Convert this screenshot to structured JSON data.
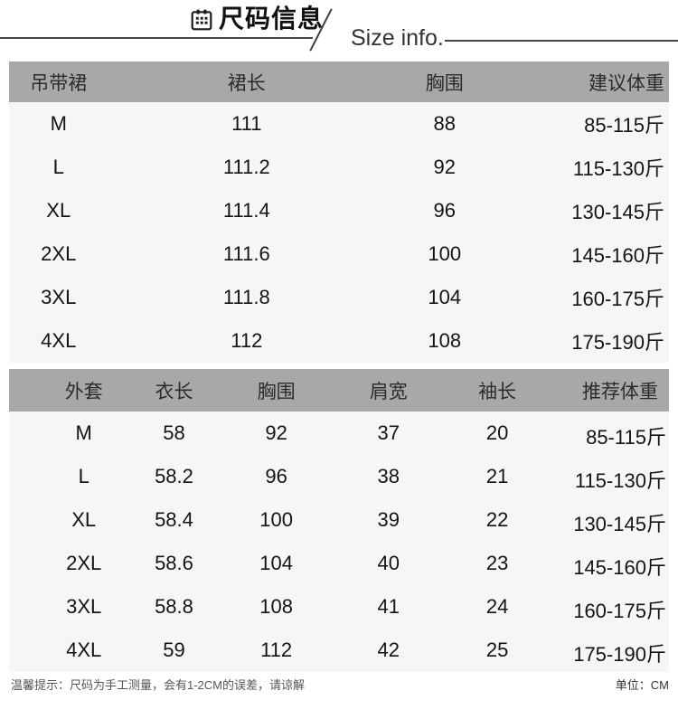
{
  "header": {
    "title_cn": "尺码信息",
    "title_en": "Size info.",
    "icon": "calendar-icon"
  },
  "tables": [
    {
      "name": "dress",
      "columns": [
        "吊带裙",
        "裙长",
        "胸围",
        "建议体重"
      ],
      "rows": [
        [
          "M",
          "111",
          "88",
          "85-115斤"
        ],
        [
          "L",
          "111.2",
          "92",
          "115-130斤"
        ],
        [
          "XL",
          "111.4",
          "96",
          "130-145斤"
        ],
        [
          "2XL",
          "111.6",
          "100",
          "145-160斤"
        ],
        [
          "3XL",
          "111.8",
          "104",
          "160-175斤"
        ],
        [
          "4XL",
          "112",
          "108",
          "175-190斤"
        ]
      ]
    },
    {
      "name": "coat",
      "columns": [
        "外套",
        "衣长",
        "胸围",
        "肩宽",
        "袖长",
        "推荐体重"
      ],
      "rows": [
        [
          "M",
          "58",
          "92",
          "37",
          "20",
          "85-115斤"
        ],
        [
          "L",
          "58.2",
          "96",
          "38",
          "21",
          "115-130斤"
        ],
        [
          "XL",
          "58.4",
          "100",
          "39",
          "22",
          "130-145斤"
        ],
        [
          "2XL",
          "58.6",
          "104",
          "40",
          "23",
          "145-160斤"
        ],
        [
          "3XL",
          "58.8",
          "108",
          "41",
          "24",
          "160-175斤"
        ],
        [
          "4XL",
          "59",
          "112",
          "42",
          "25",
          "175-190斤"
        ]
      ]
    }
  ],
  "footer": {
    "note": "温馨提示：尺码为手工测量，会有1-2CM的误差，请谅解",
    "unit": "单位：CM"
  },
  "colors": {
    "header_band": "#a8a8a8",
    "row_bg": "#f6f6f6",
    "line": "#454545"
  }
}
